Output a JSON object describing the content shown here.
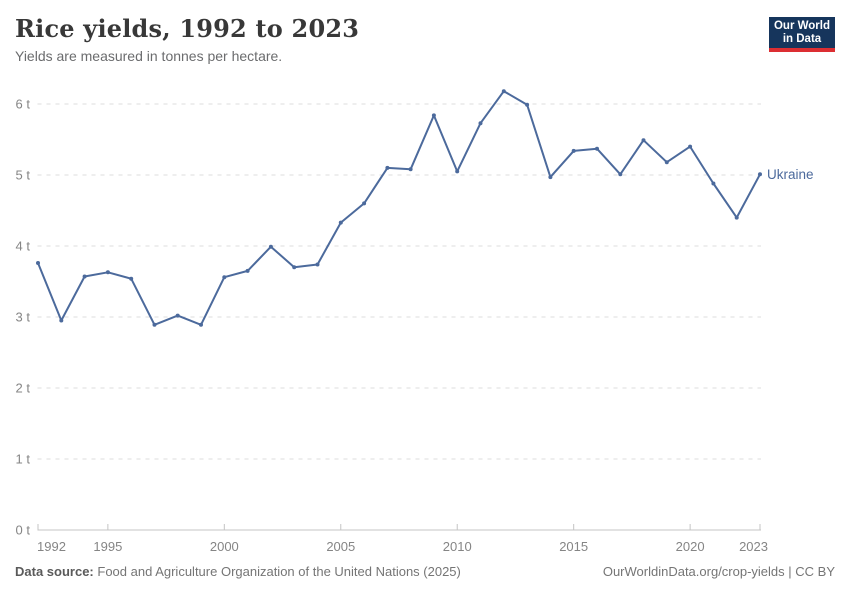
{
  "header": {
    "title": "Rice yields, 1992 to 2023",
    "subtitle": "Yields are measured in tonnes per hectare."
  },
  "logo": {
    "line1": "Our World",
    "line2": "in Data",
    "bg_color": "#16355c",
    "accent_color": "#dc2e32"
  },
  "chart_data": {
    "type": "line",
    "title": "Rice yields, 1992 to 2023",
    "ylabel": "tonnes per hectare",
    "xlim": [
      1992,
      2023
    ],
    "ylim": [
      0,
      6
    ],
    "grid": "horizontal-dashed",
    "y_ticks": [
      0,
      1,
      2,
      3,
      4,
      5,
      6
    ],
    "y_tick_suffix": " t",
    "y_tick_labels": [
      "0 t",
      "1 t",
      "2 t",
      "3 t",
      "4 t",
      "5 t",
      "6 t"
    ],
    "x_ticks": [
      1992,
      1995,
      2000,
      2005,
      2010,
      2015,
      2020,
      2023
    ],
    "series": [
      {
        "name": "Ukraine",
        "color": "#4C6A9C",
        "x": [
          1992,
          1993,
          1994,
          1995,
          1996,
          1997,
          1998,
          1999,
          2000,
          2001,
          2002,
          2003,
          2004,
          2005,
          2006,
          2007,
          2008,
          2009,
          2010,
          2011,
          2012,
          2013,
          2014,
          2015,
          2016,
          2017,
          2018,
          2019,
          2020,
          2021,
          2022,
          2023
        ],
        "values": [
          3.76,
          2.95,
          3.57,
          3.63,
          3.54,
          2.89,
          3.02,
          2.89,
          3.56,
          3.65,
          3.99,
          3.7,
          3.74,
          4.33,
          4.6,
          5.1,
          5.08,
          5.84,
          5.05,
          5.73,
          6.18,
          5.99,
          4.97,
          5.34,
          5.37,
          5.01,
          5.49,
          5.18,
          5.4,
          4.88,
          4.4,
          5.01
        ]
      }
    ],
    "entity_label": "Ukraine",
    "grid_color": "#dddddd",
    "axis_color": "#c4c4c4",
    "tick_label_color": "#858585"
  },
  "footer": {
    "source_label": "Data source:",
    "source_text": "Food and Agriculture Organization of the United Nations (2025)",
    "credit": "OurWorldinData.org/crop-yields | CC BY"
  }
}
